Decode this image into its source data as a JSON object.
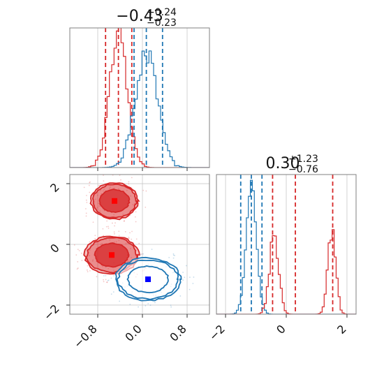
{
  "chart_data": [
    {
      "type": "histogram",
      "panel": "top-left marginal",
      "title": {
        "value": "−0.43",
        "plus": "+0.24",
        "minus": "−0.23"
      },
      "xlim": [
        -1.3,
        1.2
      ],
      "x_ticks": [
        -0.8,
        0.0,
        0.8
      ],
      "grid": true,
      "series": [
        {
          "color": "#d62728",
          "center": -0.43,
          "sigma": 0.16,
          "quantiles": [
            -0.66,
            -0.43,
            -0.19
          ],
          "peak_height": 0.92
        },
        {
          "color": "#1f77b4",
          "center": 0.07,
          "sigma": 0.2,
          "quantiles": [
            -0.15,
            0.07,
            0.36
          ],
          "peak_height": 0.82
        }
      ]
    },
    {
      "type": "histogram",
      "panel": "bottom-right marginal",
      "title": {
        "value": "0.30",
        "plus": "+1.23",
        "minus": "−0.76"
      },
      "xlim": [
        -2.3,
        2.3
      ],
      "x_ticks": [
        -2,
        0,
        2
      ],
      "grid": true,
      "series": [
        {
          "color": "#1f77b4",
          "modes": [
            {
              "center": -1.15,
              "sigma": 0.17,
              "height": 0.88
            }
          ],
          "quantiles": [
            -1.5,
            -1.15,
            -0.8
          ]
        },
        {
          "color": "#d62728",
          "modes": [
            {
              "center": -0.4,
              "sigma": 0.15,
              "height": 0.58
            },
            {
              "center": 1.5,
              "sigma": 0.13,
              "height": 0.6
            }
          ],
          "quantiles": [
            -0.45,
            0.3,
            1.53
          ]
        }
      ]
    },
    {
      "type": "contour",
      "panel": "bottom-left joint",
      "xlim": [
        -1.3,
        1.2
      ],
      "ylim": [
        -2.3,
        2.3
      ],
      "x_ticks": [
        -0.8,
        0.0,
        0.8
      ],
      "y_ticks": [
        -2,
        0,
        2
      ],
      "grid": true,
      "series": [
        {
          "color": "#d62728",
          "filled": true,
          "clusters": [
            {
              "x": -0.5,
              "y": 1.43,
              "rx": 0.42,
              "ry": 0.6
            },
            {
              "x": -0.55,
              "y": -0.35,
              "rx": 0.48,
              "ry": 0.62
            }
          ],
          "markers": [
            {
              "x": -0.5,
              "y": 1.43
            },
            {
              "x": -0.55,
              "y": -0.35
            }
          ]
        },
        {
          "color": "#1f77b4",
          "filled": false,
          "clusters": [
            {
              "x": 0.1,
              "y": -1.15,
              "rx": 0.58,
              "ry": 0.7
            }
          ],
          "markers": [
            {
              "x": 0.1,
              "y": -1.15
            }
          ]
        }
      ]
    }
  ]
}
